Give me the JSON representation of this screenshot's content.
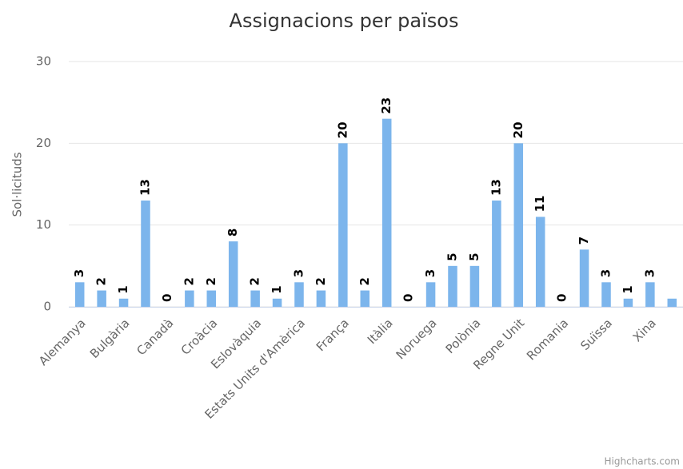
{
  "chart_data": {
    "type": "bar",
    "title": "Assignacions per països",
    "y_axis_label": "Sol·licituds",
    "credits": "Highcharts.com",
    "categories": [
      "Alemanya",
      null,
      "Bulgària",
      null,
      "Canadà",
      null,
      "Croàcia",
      null,
      "Eslovàquia",
      null,
      "Estats Units d'Amèrica",
      null,
      "França",
      null,
      "Itàlia",
      null,
      "Noruega",
      null,
      "Polònia",
      null,
      "Regne Unit",
      null,
      "Romania",
      null,
      "Suïssa",
      null,
      "Xina",
      null
    ],
    "values": [
      3,
      2,
      1,
      13,
      0,
      2,
      2,
      8,
      2,
      1,
      3,
      2,
      20,
      2,
      23,
      0,
      3,
      5,
      5,
      13,
      20,
      11,
      0,
      7,
      3,
      1,
      3,
      1
    ],
    "value_labels": [
      "3",
      "2",
      "1",
      "13",
      "0",
      "2",
      "2",
      "8",
      "2",
      "1",
      "3",
      "2",
      "20",
      "2",
      "23",
      "0",
      "3",
      "5",
      "5",
      "13",
      "20",
      "11",
      "0",
      "7",
      "3",
      "1",
      "3",
      null
    ],
    "color": "#7cb5ec",
    "ylim": [
      0,
      30
    ],
    "yticks": [
      0,
      10,
      20,
      30
    ],
    "grid": true
  }
}
